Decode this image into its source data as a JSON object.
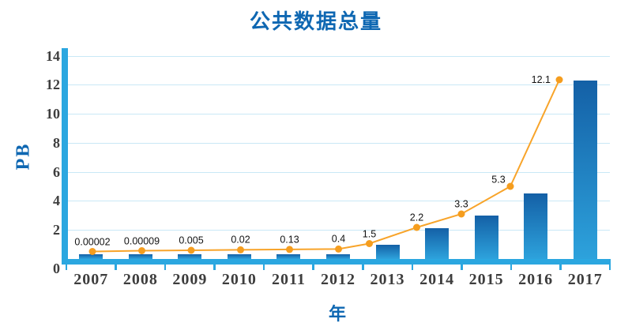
{
  "title": "公共数据总量",
  "y_axis": {
    "title": "PB",
    "ticks": [
      "0",
      "2",
      "4",
      "6",
      "8",
      "10",
      "12",
      "14"
    ],
    "min": 0,
    "max": 14
  },
  "x_axis": {
    "title": "年",
    "categories": [
      "2007",
      "2008",
      "2009",
      "2010",
      "2011",
      "2012",
      "2013",
      "2014",
      "2015",
      "2016",
      "2017"
    ]
  },
  "chart_data": {
    "type": "bar",
    "title": "公共数据总量",
    "xlabel": "年",
    "ylabel": "PB",
    "ylim": [
      0,
      14
    ],
    "grid": true,
    "legend": "none",
    "categories": [
      "2007",
      "2008",
      "2009",
      "2010",
      "2011",
      "2012",
      "2013",
      "2014",
      "2015",
      "2016",
      "2017"
    ],
    "series": [
      {
        "name": "bars",
        "type": "bar",
        "values": [
          0.3,
          0.3,
          0.3,
          0.3,
          0.3,
          0.3,
          1.0,
          2.1,
          3.0,
          4.5,
          12.3
        ]
      },
      {
        "name": "line",
        "type": "line",
        "values": [
          2e-05,
          9e-05,
          0.005,
          0.02,
          0.13,
          0.4,
          1.5,
          2.2,
          3.3,
          5.3,
          12.1
        ],
        "data_labels": [
          "0.00002",
          "0.00009",
          "0.005",
          "0.02",
          "0.13",
          "0.4",
          "1.5",
          "2.2",
          "3.3",
          "5.3",
          "12.1"
        ]
      }
    ]
  },
  "colors": {
    "blue_text": "#0e67b2",
    "band": "#2ba7e0",
    "grid": "#c9e8f6",
    "bar_top": "#1460a6",
    "bar_bottom": "#2da2dc",
    "line": "#f8a42a",
    "marker": "#f59d1e",
    "tick_text": "#3d3d3d",
    "label_text": "#121212"
  }
}
